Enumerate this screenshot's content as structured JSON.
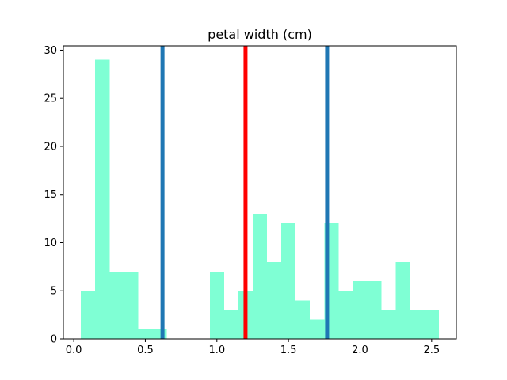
{
  "chart_data": {
    "type": "bar",
    "title": "petal width (cm)",
    "xlabel": "",
    "ylabel": "",
    "xlim": [
      -0.0725,
      2.6725
    ],
    "ylim": [
      0,
      30.45
    ],
    "bar_color": "#7fffd4",
    "bins": [
      {
        "start": 0.05,
        "end": 0.15,
        "count": 5
      },
      {
        "start": 0.15,
        "end": 0.25,
        "count": 29
      },
      {
        "start": 0.25,
        "end": 0.35,
        "count": 7
      },
      {
        "start": 0.35,
        "end": 0.45,
        "count": 7
      },
      {
        "start": 0.45,
        "end": 0.55,
        "count": 1
      },
      {
        "start": 0.55,
        "end": 0.65,
        "count": 1
      },
      {
        "start": 0.65,
        "end": 0.75,
        "count": 0
      },
      {
        "start": 0.75,
        "end": 0.85,
        "count": 0
      },
      {
        "start": 0.85,
        "end": 0.95,
        "count": 0
      },
      {
        "start": 0.95,
        "end": 1.05,
        "count": 7
      },
      {
        "start": 1.05,
        "end": 1.15,
        "count": 3
      },
      {
        "start": 1.15,
        "end": 1.25,
        "count": 5
      },
      {
        "start": 1.25,
        "end": 1.35,
        "count": 13
      },
      {
        "start": 1.35,
        "end": 1.45,
        "count": 8
      },
      {
        "start": 1.45,
        "end": 1.55,
        "count": 12
      },
      {
        "start": 1.55,
        "end": 1.65,
        "count": 4
      },
      {
        "start": 1.65,
        "end": 1.75,
        "count": 2
      },
      {
        "start": 1.75,
        "end": 1.85,
        "count": 12
      },
      {
        "start": 1.85,
        "end": 1.95,
        "count": 5
      },
      {
        "start": 1.95,
        "end": 2.05,
        "count": 6
      },
      {
        "start": 2.05,
        "end": 2.15,
        "count": 6
      },
      {
        "start": 2.15,
        "end": 2.25,
        "count": 3
      },
      {
        "start": 2.25,
        "end": 2.35,
        "count": 8
      },
      {
        "start": 2.35,
        "end": 2.45,
        "count": 3
      },
      {
        "start": 2.45,
        "end": 2.55,
        "count": 3
      }
    ],
    "vertical_lines": [
      {
        "x": 0.62,
        "color": "#1f77b4"
      },
      {
        "x": 1.2,
        "color": "#ff0000"
      },
      {
        "x": 1.77,
        "color": "#1f77b4"
      }
    ],
    "x_ticks": [
      {
        "value": 0.0,
        "label": "0.0"
      },
      {
        "value": 0.5,
        "label": "0.5"
      },
      {
        "value": 1.0,
        "label": "1.0"
      },
      {
        "value": 1.5,
        "label": "1.5"
      },
      {
        "value": 2.0,
        "label": "2.0"
      },
      {
        "value": 2.5,
        "label": "2.5"
      }
    ],
    "y_ticks": [
      {
        "value": 0,
        "label": "0"
      },
      {
        "value": 5,
        "label": "5"
      },
      {
        "value": 10,
        "label": "10"
      },
      {
        "value": 15,
        "label": "15"
      },
      {
        "value": 20,
        "label": "20"
      },
      {
        "value": 25,
        "label": "25"
      },
      {
        "value": 30,
        "label": "30"
      }
    ],
    "grid": false,
    "legend": "none"
  }
}
